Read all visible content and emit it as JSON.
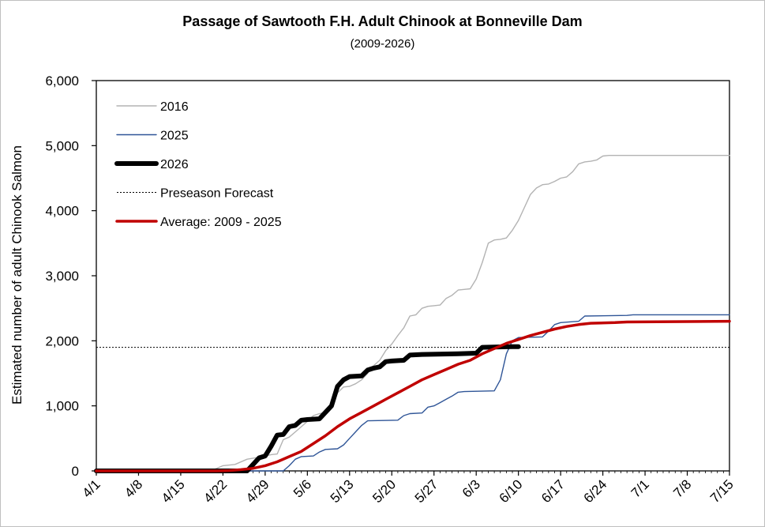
{
  "chart_data": {
    "type": "line",
    "title": "Passage of Sawtooth F.H. Adult Chinook at Bonneville Dam",
    "subtitle": "(2009-2026)",
    "ylabel": "Estimated number of adult Chinook Salmon",
    "xlabel": "",
    "ylim": [
      0,
      6000
    ],
    "yticks": [
      0,
      1000,
      2000,
      3000,
      4000,
      5000,
      6000
    ],
    "ytick_labels": [
      "0",
      "1,000",
      "2,000",
      "3,000",
      "4,000",
      "5,000",
      "6,000"
    ],
    "xlim": [
      "4/1",
      "7/15"
    ],
    "xticks": [
      "4/1",
      "4/8",
      "4/15",
      "4/22",
      "4/29",
      "5/6",
      "5/13",
      "5/20",
      "5/27",
      "6/3",
      "6/10",
      "6/17",
      "6/24",
      "7/1",
      "7/8",
      "7/15"
    ],
    "grid": false,
    "legend_position": "top-left",
    "series": [
      {
        "name": "2016",
        "color": "#b3b3b3",
        "style": "solid-thin",
        "points": [
          [
            "4/1",
            0
          ],
          [
            "4/20",
            0
          ],
          [
            "4/22",
            80
          ],
          [
            "4/24",
            100
          ],
          [
            "4/26",
            180
          ],
          [
            "4/28",
            210
          ],
          [
            "4/30",
            250
          ],
          [
            "5/1",
            260
          ],
          [
            "5/2",
            480
          ],
          [
            "5/3",
            520
          ],
          [
            "5/4",
            600
          ],
          [
            "5/5",
            680
          ],
          [
            "5/6",
            760
          ],
          [
            "5/7",
            850
          ],
          [
            "5/8",
            880
          ],
          [
            "5/9",
            900
          ],
          [
            "5/10",
            960
          ],
          [
            "5/11",
            1200
          ],
          [
            "5/12",
            1290
          ],
          [
            "5/13",
            1300
          ],
          [
            "5/14",
            1340
          ],
          [
            "5/15",
            1400
          ],
          [
            "5/16",
            1500
          ],
          [
            "5/17",
            1620
          ],
          [
            "5/18",
            1700
          ],
          [
            "5/19",
            1850
          ],
          [
            "5/20",
            1950
          ],
          [
            "5/21",
            2080
          ],
          [
            "5/22",
            2200
          ],
          [
            "5/23",
            2380
          ],
          [
            "5/24",
            2400
          ],
          [
            "5/25",
            2500
          ],
          [
            "5/26",
            2530
          ],
          [
            "5/27",
            2540
          ],
          [
            "5/28",
            2550
          ],
          [
            "5/29",
            2650
          ],
          [
            "5/30",
            2700
          ],
          [
            "5/31",
            2780
          ],
          [
            "6/1",
            2790
          ],
          [
            "6/2",
            2800
          ],
          [
            "6/3",
            2950
          ],
          [
            "6/4",
            3200
          ],
          [
            "6/5",
            3500
          ],
          [
            "6/6",
            3550
          ],
          [
            "6/7",
            3560
          ],
          [
            "6/8",
            3580
          ],
          [
            "6/9",
            3700
          ],
          [
            "6/10",
            3850
          ],
          [
            "6/11",
            4050
          ],
          [
            "6/12",
            4250
          ],
          [
            "6/13",
            4350
          ],
          [
            "6/14",
            4400
          ],
          [
            "6/15",
            4410
          ],
          [
            "6/16",
            4450
          ],
          [
            "6/17",
            4500
          ],
          [
            "6/18",
            4520
          ],
          [
            "6/19",
            4600
          ],
          [
            "6/20",
            4720
          ],
          [
            "6/21",
            4750
          ],
          [
            "6/22",
            4760
          ],
          [
            "6/23",
            4780
          ],
          [
            "6/24",
            4840
          ],
          [
            "6/25",
            4850
          ],
          [
            "7/15",
            4850
          ]
        ]
      },
      {
        "name": "2025",
        "color": "#2f5597",
        "style": "solid-thin",
        "points": [
          [
            "4/1",
            0
          ],
          [
            "5/2",
            0
          ],
          [
            "5/3",
            80
          ],
          [
            "5/4",
            180
          ],
          [
            "5/5",
            220
          ],
          [
            "5/7",
            230
          ],
          [
            "5/8",
            290
          ],
          [
            "5/9",
            330
          ],
          [
            "5/11",
            340
          ],
          [
            "5/12",
            400
          ],
          [
            "5/13",
            500
          ],
          [
            "5/14",
            600
          ],
          [
            "5/15",
            700
          ],
          [
            "5/16",
            770
          ],
          [
            "5/21",
            780
          ],
          [
            "5/22",
            850
          ],
          [
            "5/23",
            880
          ],
          [
            "5/25",
            890
          ],
          [
            "5/26",
            980
          ],
          [
            "5/27",
            1000
          ],
          [
            "5/28",
            1050
          ],
          [
            "5/29",
            1100
          ],
          [
            "5/30",
            1150
          ],
          [
            "5/31",
            1210
          ],
          [
            "6/1",
            1220
          ],
          [
            "6/6",
            1230
          ],
          [
            "6/7",
            1400
          ],
          [
            "6/8",
            1800
          ],
          [
            "6/9",
            2000
          ],
          [
            "6/10",
            2050
          ],
          [
            "6/14",
            2060
          ],
          [
            "6/15",
            2150
          ],
          [
            "6/16",
            2250
          ],
          [
            "6/17",
            2280
          ],
          [
            "6/20",
            2300
          ],
          [
            "6/21",
            2380
          ],
          [
            "6/28",
            2390
          ],
          [
            "6/29",
            2400
          ],
          [
            "7/15",
            2400
          ]
        ]
      },
      {
        "name": "2026",
        "color": "#000000",
        "style": "solid-thick",
        "points": [
          [
            "4/1",
            0
          ],
          [
            "4/26",
            0
          ],
          [
            "4/27",
            100
          ],
          [
            "4/28",
            200
          ],
          [
            "4/29",
            230
          ],
          [
            "4/30",
            380
          ],
          [
            "5/1",
            550
          ],
          [
            "5/2",
            560
          ],
          [
            "5/3",
            680
          ],
          [
            "5/4",
            700
          ],
          [
            "5/5",
            780
          ],
          [
            "5/6",
            790
          ],
          [
            "5/8",
            800
          ],
          [
            "5/9",
            900
          ],
          [
            "5/10",
            1000
          ],
          [
            "5/11",
            1300
          ],
          [
            "5/12",
            1400
          ],
          [
            "5/13",
            1450
          ],
          [
            "5/15",
            1460
          ],
          [
            "5/16",
            1550
          ],
          [
            "5/17",
            1580
          ],
          [
            "5/18",
            1600
          ],
          [
            "5/19",
            1680
          ],
          [
            "5/20",
            1690
          ],
          [
            "5/22",
            1700
          ],
          [
            "5/23",
            1780
          ],
          [
            "5/25",
            1790
          ],
          [
            "5/31",
            1800
          ],
          [
            "6/3",
            1810
          ],
          [
            "6/4",
            1900
          ],
          [
            "6/9",
            1910
          ],
          [
            "6/10",
            1910
          ]
        ]
      },
      {
        "name": "Preseason Forecast",
        "color": "#000000",
        "style": "dotted",
        "points": [
          [
            "4/1",
            1900
          ],
          [
            "7/15",
            1900
          ]
        ]
      },
      {
        "name": "Average: 2009 - 2025",
        "color": "#c00000",
        "style": "solid-medium",
        "points": [
          [
            "4/1",
            0
          ],
          [
            "4/21",
            0
          ],
          [
            "4/23",
            5
          ],
          [
            "4/25",
            20
          ],
          [
            "4/27",
            40
          ],
          [
            "4/29",
            80
          ],
          [
            "5/1",
            140
          ],
          [
            "5/3",
            220
          ],
          [
            "5/5",
            300
          ],
          [
            "5/7",
            420
          ],
          [
            "5/9",
            540
          ],
          [
            "5/11",
            680
          ],
          [
            "5/13",
            800
          ],
          [
            "5/15",
            900
          ],
          [
            "5/17",
            1000
          ],
          [
            "5/19",
            1100
          ],
          [
            "5/21",
            1200
          ],
          [
            "5/23",
            1300
          ],
          [
            "5/25",
            1400
          ],
          [
            "5/27",
            1480
          ],
          [
            "5/29",
            1560
          ],
          [
            "5/31",
            1640
          ],
          [
            "6/2",
            1700
          ],
          [
            "6/4",
            1800
          ],
          [
            "6/6",
            1880
          ],
          [
            "6/8",
            1960
          ],
          [
            "6/10",
            2020
          ],
          [
            "6/12",
            2080
          ],
          [
            "6/14",
            2130
          ],
          [
            "6/16",
            2180
          ],
          [
            "6/18",
            2220
          ],
          [
            "6/20",
            2250
          ],
          [
            "6/22",
            2270
          ],
          [
            "6/26",
            2280
          ],
          [
            "6/28",
            2290
          ],
          [
            "7/15",
            2300
          ]
        ]
      }
    ]
  }
}
